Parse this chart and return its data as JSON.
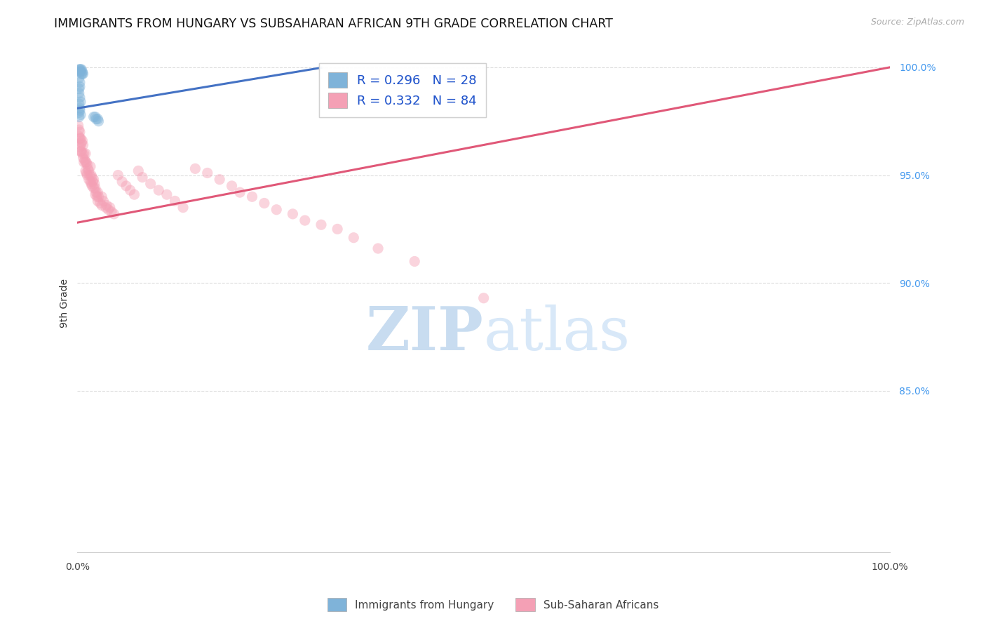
{
  "title": "IMMIGRANTS FROM HUNGARY VS SUBSAHARAN AFRICAN 9TH GRADE CORRELATION CHART",
  "source": "Source: ZipAtlas.com",
  "ylabel": "9th Grade",
  "right_ytick_labels": [
    "100.0%",
    "95.0%",
    "90.0%",
    "85.0%"
  ],
  "right_ytick_values": [
    1.0,
    0.95,
    0.9,
    0.85
  ],
  "legend_label1": "R = 0.296   N = 28",
  "legend_label2": "R = 0.332   N = 84",
  "legend_series1": "Immigrants from Hungary",
  "legend_series2": "Sub-Saharan Africans",
  "watermark_zip": "ZIP",
  "watermark_atlas": "atlas",
  "blue_color": "#7FB3D9",
  "pink_color": "#F4A0B5",
  "blue_line_color": "#4472C4",
  "pink_line_color": "#E05878",
  "blue_scatter_x": [
    0.002,
    0.003,
    0.003,
    0.004,
    0.004,
    0.005,
    0.005,
    0.006,
    0.006,
    0.007,
    0.002,
    0.003,
    0.003,
    0.002,
    0.002,
    0.003,
    0.004,
    0.002,
    0.003,
    0.003,
    0.002,
    0.004,
    0.002,
    0.02,
    0.022,
    0.023,
    0.025,
    0.026
  ],
  "blue_scatter_y": [
    0.999,
    0.999,
    0.998,
    0.999,
    0.998,
    0.999,
    0.997,
    0.997,
    0.998,
    0.997,
    0.995,
    0.993,
    0.991,
    0.99,
    0.988,
    0.986,
    0.984,
    0.983,
    0.981,
    0.98,
    0.979,
    0.978,
    0.977,
    0.977,
    0.977,
    0.976,
    0.976,
    0.975
  ],
  "pink_scatter_x": [
    0.001,
    0.002,
    0.002,
    0.003,
    0.003,
    0.003,
    0.004,
    0.004,
    0.004,
    0.005,
    0.005,
    0.006,
    0.006,
    0.007,
    0.007,
    0.008,
    0.008,
    0.009,
    0.01,
    0.01,
    0.01,
    0.011,
    0.011,
    0.012,
    0.012,
    0.013,
    0.014,
    0.014,
    0.015,
    0.016,
    0.016,
    0.017,
    0.017,
    0.018,
    0.018,
    0.019,
    0.02,
    0.02,
    0.021,
    0.022,
    0.022,
    0.023,
    0.024,
    0.025,
    0.025,
    0.026,
    0.028,
    0.03,
    0.03,
    0.032,
    0.035,
    0.036,
    0.038,
    0.04,
    0.042,
    0.045,
    0.05,
    0.055,
    0.06,
    0.065,
    0.07,
    0.075,
    0.08,
    0.09,
    0.1,
    0.11,
    0.12,
    0.13,
    0.145,
    0.16,
    0.175,
    0.19,
    0.2,
    0.215,
    0.23,
    0.245,
    0.265,
    0.28,
    0.3,
    0.32,
    0.34,
    0.37,
    0.415,
    0.5
  ],
  "pink_scatter_y": [
    0.973,
    0.971,
    0.968,
    0.97,
    0.967,
    0.963,
    0.967,
    0.964,
    0.961,
    0.965,
    0.961,
    0.966,
    0.96,
    0.964,
    0.958,
    0.96,
    0.956,
    0.957,
    0.96,
    0.956,
    0.952,
    0.956,
    0.951,
    0.955,
    0.95,
    0.953,
    0.952,
    0.948,
    0.95,
    0.954,
    0.947,
    0.95,
    0.946,
    0.949,
    0.945,
    0.947,
    0.948,
    0.944,
    0.946,
    0.944,
    0.941,
    0.942,
    0.94,
    0.942,
    0.938,
    0.94,
    0.937,
    0.94,
    0.936,
    0.938,
    0.935,
    0.936,
    0.934,
    0.935,
    0.933,
    0.932,
    0.95,
    0.947,
    0.945,
    0.943,
    0.941,
    0.952,
    0.949,
    0.946,
    0.943,
    0.941,
    0.938,
    0.935,
    0.953,
    0.951,
    0.948,
    0.945,
    0.942,
    0.94,
    0.937,
    0.934,
    0.932,
    0.929,
    0.927,
    0.925,
    0.921,
    0.916,
    0.91,
    0.893
  ],
  "blue_line_start_x": 0.0,
  "blue_line_start_y": 0.981,
  "blue_line_end_x": 0.3,
  "blue_line_end_y": 0.9998,
  "pink_line_start_x": 0.0,
  "pink_line_start_y": 0.928,
  "pink_line_end_x": 1.0,
  "pink_line_end_y": 1.0,
  "xmin": 0.0,
  "xmax": 1.0,
  "ymin": 0.775,
  "ymax": 1.006,
  "grid_color": "#DDDDDD",
  "title_fontsize": 12.5,
  "axis_label_fontsize": 10,
  "tick_fontsize": 10,
  "legend_fontsize": 13,
  "scatter_size": 120,
  "scatter_alpha": 0.45,
  "line_width": 2.2
}
